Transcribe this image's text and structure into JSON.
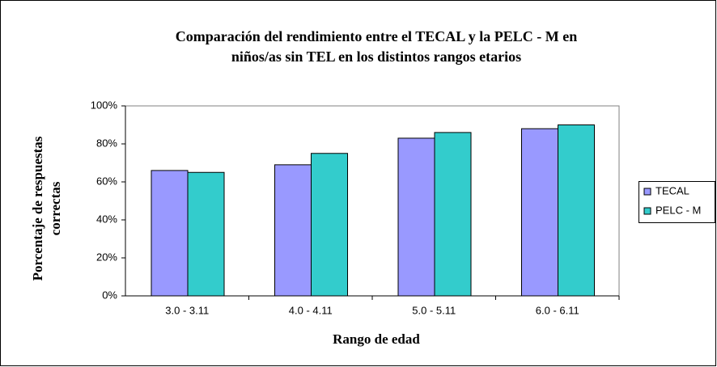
{
  "chart_data": {
    "type": "bar",
    "title": [
      "Comparación del rendimiento entre el TECAL y la PELC - M en",
      "niños/as sin TEL en los distintos rangos etarios"
    ],
    "x_label": "Rango de edad",
    "y_label": [
      "Porcentaje de respuestas",
      "correctas"
    ],
    "categories": [
      "3.0 - 3.11",
      "4.0 - 4.11",
      "5.0 - 5.11",
      "6.0 - 6.11"
    ],
    "series": [
      {
        "name": "TECAL",
        "color": "#9999ff",
        "values": [
          66,
          69,
          83,
          88
        ]
      },
      {
        "name": "PELC - M",
        "color": "#33cccc",
        "values": [
          65,
          75,
          86,
          90
        ]
      }
    ],
    "ylim": [
      0,
      100
    ],
    "yticks": [
      {
        "value": 0,
        "label": "0%"
      },
      {
        "value": 20,
        "label": "20%"
      },
      {
        "value": 40,
        "label": "40%"
      },
      {
        "value": 60,
        "label": "60%"
      },
      {
        "value": 80,
        "label": "80%"
      },
      {
        "value": 100,
        "label": "100%"
      }
    ],
    "legend": "right"
  }
}
